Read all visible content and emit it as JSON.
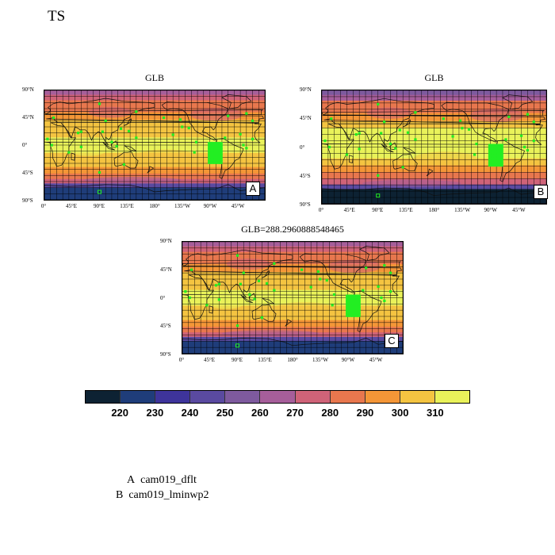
{
  "title": "TS",
  "panels": [
    {
      "id": "A",
      "title": "GLB",
      "label": "A"
    },
    {
      "id": "B",
      "title": "GLB",
      "label": "B"
    },
    {
      "id": "C",
      "title": "GLB=288.2960888548465",
      "label": "C"
    }
  ],
  "lat_ticks": [
    "90°N",
    "45°N",
    "0°",
    "45°S",
    "90°S"
  ],
  "lon_ticks": [
    "0°",
    "45°E",
    "90°E",
    "135°E",
    "180°",
    "135°W",
    "90°W",
    "45°W"
  ],
  "colorbar": {
    "labels": [
      "220",
      "230",
      "240",
      "250",
      "260",
      "270",
      "280",
      "290",
      "300",
      "310"
    ],
    "colors": [
      "#0d2233",
      "#1f3d7a",
      "#3e349b",
      "#5a4aa0",
      "#7e5a9e",
      "#a65e9a",
      "#cf6378",
      "#e8774e",
      "#f49637",
      "#f4c441",
      "#e9f25a"
    ]
  },
  "legend": [
    {
      "key": "A",
      "name": "cam019_dflt"
    },
    {
      "key": "B",
      "name": "cam019_lminwp2"
    }
  ],
  "marker_color": "#22ee22"
}
